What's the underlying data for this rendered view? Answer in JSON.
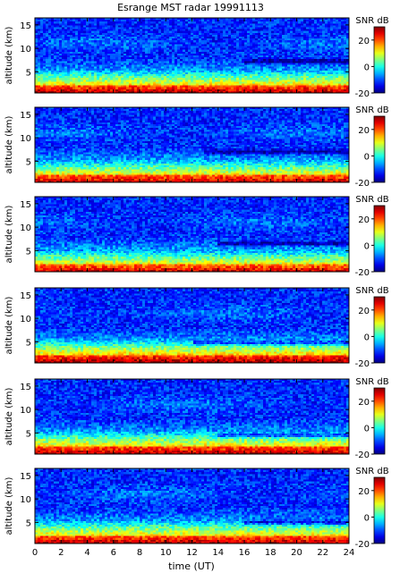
{
  "chart_data": {
    "type": "heatmap",
    "title": "Esrange MST radar 19991113",
    "xlabel": "time (UT)",
    "ylabel": "altitude (km)",
    "xlim": [
      0,
      24
    ],
    "ylim": [
      0.5,
      16.5
    ],
    "x_ticks": [
      0,
      2,
      4,
      6,
      8,
      10,
      12,
      14,
      16,
      18,
      20,
      22,
      24
    ],
    "y_ticks": [
      5,
      10,
      15
    ],
    "colorbar": {
      "label": "SNR dB",
      "range": [
        -20,
        30
      ],
      "ticks": [
        -20,
        0,
        20
      ],
      "colormap": "jet"
    },
    "panels": [
      {
        "name": "panel-1",
        "inversion_start_time": 16,
        "inversion_altitude": 7.2,
        "low_layer_top": 5.5
      },
      {
        "name": "panel-2",
        "inversion_start_time": 13,
        "inversion_altitude": 7.0,
        "low_layer_top": 5.2
      },
      {
        "name": "panel-3",
        "inversion_start_time": 14,
        "inversion_altitude": 6.5,
        "low_layer_top": 5.0
      },
      {
        "name": "panel-4",
        "inversion_start_time": 12,
        "inversion_altitude": 4.8,
        "low_layer_top": 5.8
      },
      {
        "name": "panel-5",
        "inversion_start_time": 14,
        "inversion_altitude": 4.5,
        "low_layer_top": 5.5
      },
      {
        "name": "panel-6",
        "inversion_start_time": 16,
        "inversion_altitude": 5.0,
        "low_layer_top": 5.5
      }
    ]
  }
}
